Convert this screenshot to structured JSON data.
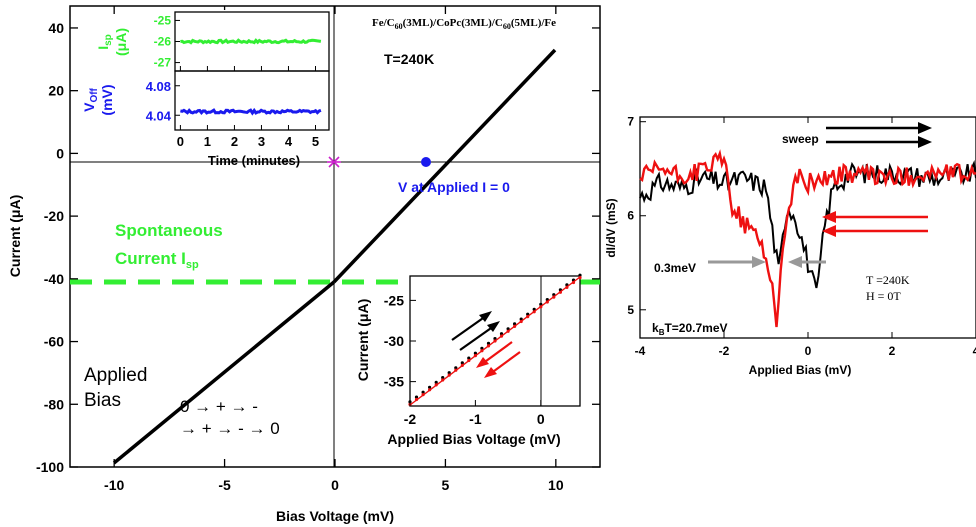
{
  "colors": {
    "axis": "#000000",
    "main_line": "#000000",
    "spontaneous": "#33ee33",
    "voffset": "#1a1aee",
    "marker_origin": "#cc22cc",
    "marker_zero": "#1a1aee",
    "forward": "#000000",
    "reverse": "#ee1111",
    "gap_arrow": "#999999"
  },
  "main": {
    "xlabel": "Bias Voltage (mV)",
    "ylabel": "Current (μA)",
    "sample": "Fe/C60(3ML)/CoPc(3ML)/C60(5ML)/Fe",
    "temperature": "T=240K",
    "zero_label": "V at Applied I = 0",
    "spont_line1": "Spontaneous",
    "spont_line2": "Current I",
    "spont_sub": "sp",
    "applied_line1": "Applied",
    "applied_line2": "Bias",
    "sequence_line1": "0 → + → -",
    "sequence_line2": "→ + → - → 0"
  },
  "inset_time": {
    "xlabel": "Time (minutes)",
    "top_ylabel_main": "I",
    "top_ylabel_sub": "sp",
    "top_ylabel_unit": "(μA)",
    "bottom_ylabel_main": "V",
    "bottom_ylabel_sub": "Off",
    "bottom_ylabel_unit": "(mV)"
  },
  "inset_zoom": {
    "xlabel": "Applied Bias Voltage (mV)",
    "ylabel": "Current (μA)"
  },
  "right": {
    "xlabel": "Applied Bias (mV)",
    "ylabel": "dI/dV (mS)",
    "sweep_label": "sweep",
    "gap_label": "0.3meV",
    "kbt_label": "k",
    "kbt_sub": "B",
    "kbt_value": "T=20.7meV",
    "temp_label": "T =240K",
    "field_label": "H = 0T"
  },
  "chart_data": [
    {
      "type": "line",
      "x": [
        -10,
        11
      ],
      "xlim": [
        -12,
        12
      ],
      "ylim": [
        -100,
        47
      ],
      "xticks": [
        "-10",
        "-5",
        "0",
        "5",
        "10"
      ],
      "yticks": [
        "-100",
        "-80",
        "-60",
        "-40",
        "-20",
        "0",
        "20",
        "40"
      ],
      "series": [
        {
          "points": [
            [
              -10,
              -89
            ],
            [
              0,
              -26
            ],
            [
              4,
              0
            ],
            [
              10,
              38
            ]
          ]
        },
        {
          "points": [
            [
              -12,
              -26
            ],
            [
              12,
              -26
            ]
          ]
        },
        {
          "points": [
            [
              0,
              0
            ]
          ]
        },
        {
          "points": [
            [
              4,
              0
            ]
          ]
        }
      ],
      "title": "",
      "xlabel": "Bias Voltage (mV)",
      "ylabel": "Current (μA)"
    },
    {
      "type": "line",
      "xlim": [
        -0.2,
        5.5
      ],
      "xticks": [
        "0",
        "1",
        "2",
        "3",
        "4",
        "5"
      ],
      "panels": [
        {
          "ylim": [
            -27.4,
            -24.6
          ],
          "yticks": [
            "-25",
            "-26",
            "-27"
          ],
          "mean": -26.0
        },
        {
          "ylim": [
            4.02,
            4.1
          ],
          "yticks": [
            "4.08",
            "4.04"
          ],
          "mean": 4.045
        }
      ],
      "xlabel": "Time (minutes)"
    },
    {
      "type": "scatter",
      "xlim": [
        -2,
        0.6
      ],
      "ylim": [
        -38,
        -22
      ],
      "xticks": [
        "-2",
        "-1",
        "0"
      ],
      "yticks": [
        "-25",
        "-30",
        "-35"
      ],
      "series": [
        {
          "points": [
            [
              -2,
              -37.8
            ],
            [
              0.6,
              -22.2
            ]
          ]
        },
        {
          "points": [
            [
              -1.2,
              -32.5
            ],
            [
              -0.45,
              -28.8
            ]
          ]
        }
      ],
      "xlabel": "Applied Bias Voltage (mV)",
      "ylabel": "Current (μA)"
    },
    {
      "type": "line",
      "xlim": [
        -4,
        4
      ],
      "ylim": [
        4.7,
        7.05
      ],
      "xticks": [
        "-4",
        "-2",
        "0",
        "2",
        "4"
      ],
      "yticks": [
        "5",
        "6",
        "7"
      ],
      "series": [
        {
          "points": [
            [
              -4,
              6.2
            ],
            [
              -3.5,
              6.35
            ],
            [
              -3,
              6.3
            ],
            [
              -2.5,
              6.4
            ],
            [
              -2,
              6.35
            ],
            [
              -1.5,
              6.4
            ],
            [
              -1,
              6.3
            ],
            [
              -0.7,
              5.4
            ],
            [
              -0.5,
              6.1
            ],
            [
              -0.3,
              6.0
            ],
            [
              0,
              5.5
            ],
            [
              0.2,
              5.15
            ],
            [
              0.4,
              5.9
            ],
            [
              0.6,
              6.3
            ],
            [
              1,
              6.45
            ],
            [
              2,
              6.45
            ],
            [
              3,
              6.4
            ],
            [
              4,
              6.45
            ]
          ]
        },
        {
          "points": [
            [
              -4,
              6.4
            ],
            [
              -3.5,
              6.5
            ],
            [
              -3,
              6.4
            ],
            [
              -2.5,
              6.5
            ],
            [
              -2,
              6.6
            ],
            [
              -1.8,
              6.1
            ],
            [
              -1.5,
              5.9
            ],
            [
              -1.2,
              5.8
            ],
            [
              -0.9,
              5.4
            ],
            [
              -0.75,
              4.9
            ],
            [
              -0.6,
              5.6
            ],
            [
              -0.45,
              6.1
            ],
            [
              -0.3,
              6.4
            ],
            [
              -0.15,
              6.4
            ],
            [
              0,
              6.35
            ],
            [
              0.3,
              6.4
            ],
            [
              1,
              6.45
            ],
            [
              2,
              6.4
            ],
            [
              3,
              6.45
            ],
            [
              4,
              6.45
            ]
          ]
        }
      ],
      "xlabel": "Applied Bias (mV)",
      "ylabel": "dI/dV (mS)"
    }
  ]
}
